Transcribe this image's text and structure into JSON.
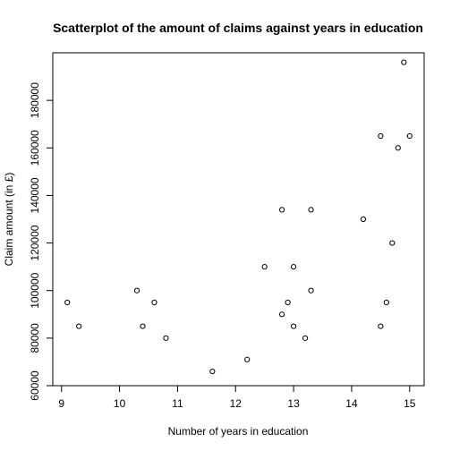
{
  "chart_data": {
    "type": "scatter",
    "title": "Scatterplot of the amount of claims against years in education",
    "xlabel": "Number of years in education",
    "ylabel": "Claim amount (in £)",
    "xlim": [
      8.85,
      15.25
    ],
    "ylim": [
      60000,
      200000
    ],
    "x_ticks": [
      9,
      10,
      11,
      12,
      13,
      14,
      15
    ],
    "y_ticks": [
      60000,
      80000,
      100000,
      120000,
      140000,
      160000,
      180000
    ],
    "y_tick_labels": [
      "60000",
      "",
      "100000",
      "",
      "140000",
      "",
      "180000"
    ],
    "y_tick_labels_alt": [
      "",
      "80000",
      "",
      "120000",
      "",
      "160000",
      ""
    ],
    "points": [
      {
        "x": 9.1,
        "y": 95000
      },
      {
        "x": 9.3,
        "y": 85000
      },
      {
        "x": 10.3,
        "y": 100000
      },
      {
        "x": 10.4,
        "y": 85000
      },
      {
        "x": 10.6,
        "y": 95000
      },
      {
        "x": 10.8,
        "y": 80000
      },
      {
        "x": 11.6,
        "y": 66000
      },
      {
        "x": 12.2,
        "y": 71000
      },
      {
        "x": 12.5,
        "y": 110000
      },
      {
        "x": 12.8,
        "y": 134000
      },
      {
        "x": 12.8,
        "y": 90000
      },
      {
        "x": 12.9,
        "y": 95000
      },
      {
        "x": 13.0,
        "y": 110000
      },
      {
        "x": 13.0,
        "y": 85000
      },
      {
        "x": 13.2,
        "y": 80000
      },
      {
        "x": 13.3,
        "y": 134000
      },
      {
        "x": 13.3,
        "y": 100000
      },
      {
        "x": 14.2,
        "y": 130000
      },
      {
        "x": 14.5,
        "y": 165000
      },
      {
        "x": 14.5,
        "y": 85000
      },
      {
        "x": 14.6,
        "y": 95000
      },
      {
        "x": 14.7,
        "y": 120000
      },
      {
        "x": 14.8,
        "y": 160000
      },
      {
        "x": 14.9,
        "y": 196000
      },
      {
        "x": 15.0,
        "y": 165000
      }
    ],
    "grid": false,
    "legend": "none",
    "point_style": "open-circle"
  }
}
